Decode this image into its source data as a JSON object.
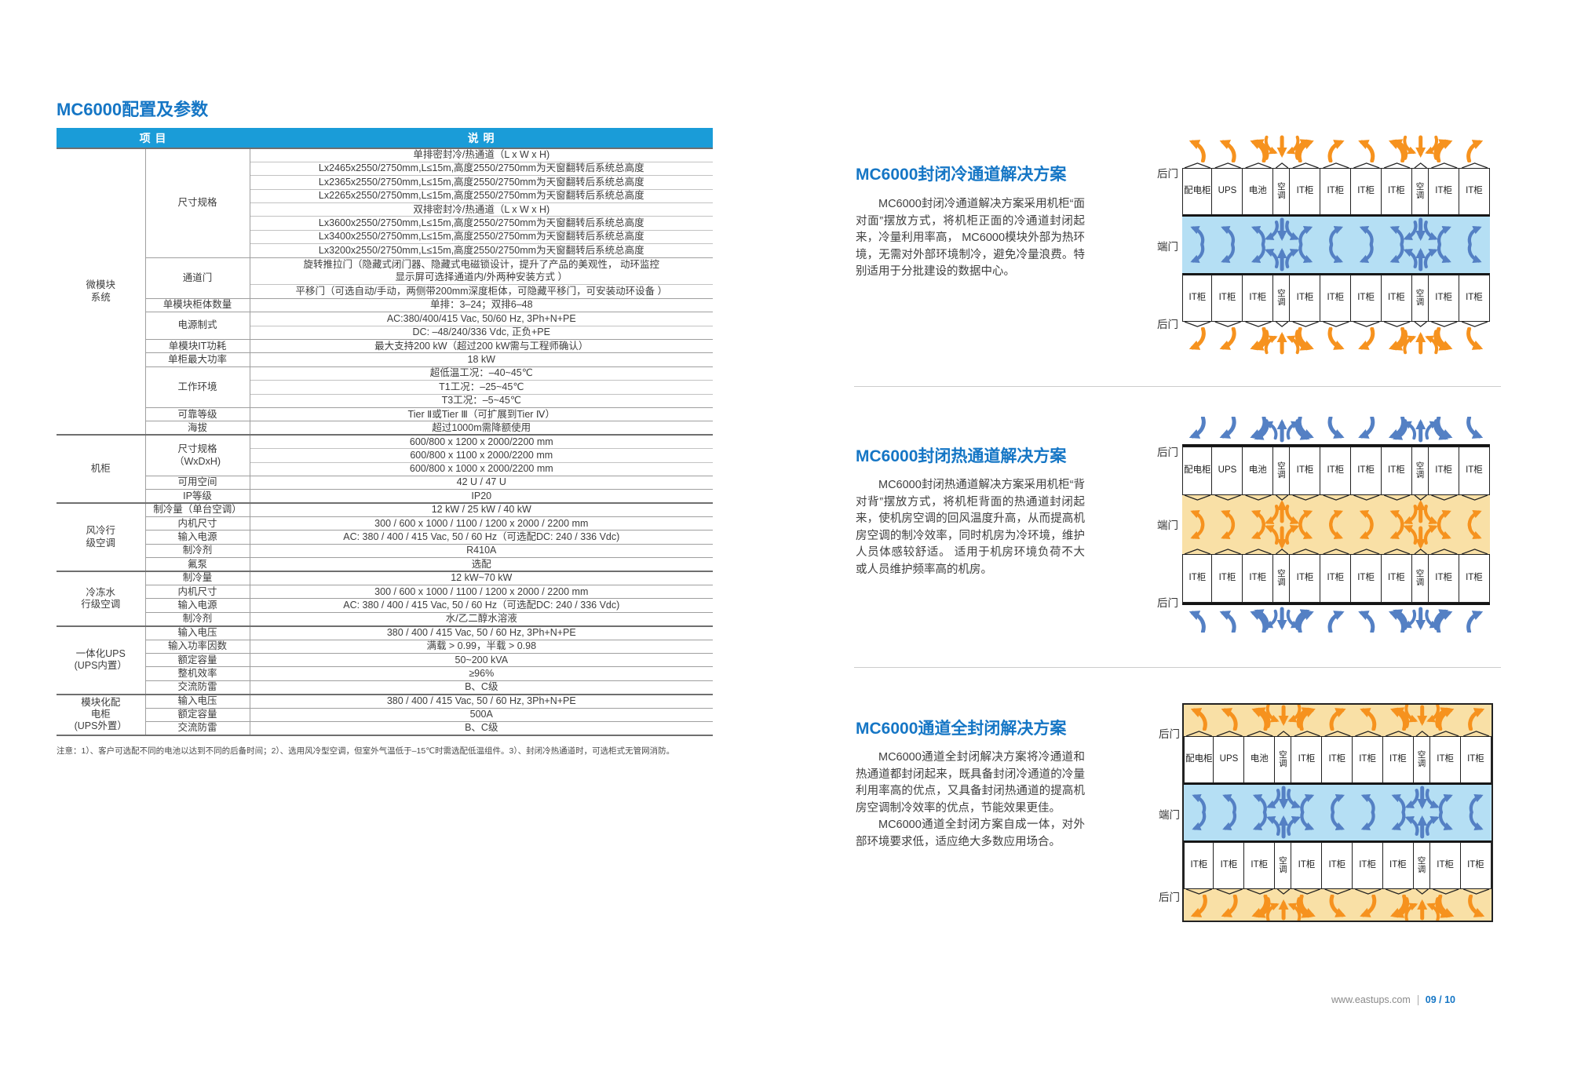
{
  "left": {
    "title": "MC6000配置及参数"
  },
  "table": {
    "headers": [
      "项  目",
      "说  明"
    ],
    "groups": [
      {
        "name": "微模块\n系统",
        "items": [
          {
            "label": "尺寸规格",
            "rows": [
              "单排密封冷/热通道（L x W x H)",
              "Lx2465x2550/2750mm,L≤15m,高度2550/2750mm为天窗翻转后系统总高度",
              "Lx2365x2550/2750mm,L≤15m,高度2550/2750mm为天窗翻转后系统总高度",
              "Lx2265x2550/2750mm,L≤15m,高度2550/2750mm为天窗翻转后系统总高度",
              "双排密封冷/热通道（L x W x H)",
              "Lx3600x2550/2750mm,L≤15m,高度2550/2750mm为天窗翻转后系统总高度",
              "Lx3400x2550/2750mm,L≤15m,高度2550/2750mm为天窗翻转后系统总高度",
              "Lx3200x2550/2750mm,L≤15m,高度2550/2750mm为天窗翻转后系统总高度"
            ]
          },
          {
            "label": "通道门",
            "rows": [
              "旋转推拉门（隐藏式闭门器、隐藏式电磁锁设计，提升了产品的美观性， 动环监控\n显示屏可选择通道内/外两种安装方式 ）",
              "平移门（可选自动/手动，两侧带200mm深度柜体，可隐藏平移门，可安装动环设备 ）"
            ]
          },
          {
            "label": "单模块柜体数量",
            "rows": [
              "单排：3–24；双排6–48"
            ]
          },
          {
            "label": "电源制式",
            "rows": [
              "AC:380/400/415 Vac, 50/60 Hz, 3Ph+N+PE",
              "DC: –48/240/336 Vdc, 正负+PE"
            ]
          },
          {
            "label": "单模块IT功耗",
            "rows": [
              "最大支持200 kW（超过200 kW需与工程师确认）"
            ]
          },
          {
            "label": "单柜最大功率",
            "rows": [
              "18 kW"
            ]
          },
          {
            "label": "工作环境",
            "rows": [
              "超低温工况：–40~45℃",
              "T1工况：–25~45℃",
              "T3工况：–5~45℃"
            ]
          },
          {
            "label": "可靠等级",
            "rows": [
              "Tier Ⅱ或Tier Ⅲ（可扩展到Tier Ⅳ）"
            ]
          },
          {
            "label": "海拔",
            "rows": [
              "超过1000m需降额使用"
            ]
          }
        ]
      },
      {
        "name": "机柜",
        "items": [
          {
            "label": "尺寸规格\n（WxDxH)",
            "rows": [
              "600/800 x 1200 x 2000/2200 mm",
              "600/800 x 1100 x 2000/2200 mm",
              "600/800 x 1000 x 2000/2200 mm"
            ]
          },
          {
            "label": "可用空间",
            "rows": [
              "42 U / 47 U"
            ]
          },
          {
            "label": "IP等级",
            "rows": [
              "IP20"
            ]
          }
        ]
      },
      {
        "name": "风冷行\n级空调",
        "items": [
          {
            "label": "制冷量（单台空调）",
            "rows": [
              "12 kW / 25 kW / 40 kW"
            ]
          },
          {
            "label": "内机尺寸",
            "rows": [
              "300 / 600 x 1000 / 1100 / 1200 x 2000 / 2200 mm"
            ]
          },
          {
            "label": "输入电源",
            "rows": [
              "AC: 380 / 400 / 415 Vac, 50 / 60 Hz（可选配DC: 240 / 336 Vdc)"
            ]
          },
          {
            "label": "制冷剂",
            "rows": [
              "R410A"
            ]
          },
          {
            "label": "氟泵",
            "rows": [
              "选配"
            ]
          }
        ]
      },
      {
        "name": "冷冻水\n行级空调",
        "items": [
          {
            "label": "制冷量",
            "rows": [
              "12 kW~70 kW"
            ]
          },
          {
            "label": "内机尺寸",
            "rows": [
              "300 / 600 x 1000 / 1100 / 1200 x 2000 / 2200 mm"
            ]
          },
          {
            "label": "输入电源",
            "rows": [
              "AC: 380 / 400 / 415 Vac, 50 / 60 Hz（可选配DC: 240 / 336 Vdc)"
            ]
          },
          {
            "label": "制冷剂",
            "rows": [
              "水/乙二醇水溶液"
            ]
          }
        ]
      },
      {
        "name": "一体化UPS\n(UPS内置）",
        "items": [
          {
            "label": "输入电压",
            "rows": [
              "380 / 400 / 415 Vac, 50 / 60 Hz, 3Ph+N+PE"
            ]
          },
          {
            "label": "输入功率因数",
            "rows": [
              "满载 > 0.99，半载 > 0.98"
            ]
          },
          {
            "label": "额定容量",
            "rows": [
              "50~200 kVA"
            ]
          },
          {
            "label": "整机效率",
            "rows": [
              "≥96%"
            ]
          },
          {
            "label": "交流防雷",
            "rows": [
              "B、C级"
            ]
          }
        ]
      },
      {
        "name": "模块化配\n电柜\n(UPS外置）",
        "items": [
          {
            "label": "输入电压",
            "rows": [
              "380 / 400 / 415 Vac, 50 / 60 Hz, 3Ph+N+PE"
            ]
          },
          {
            "label": "额定容量",
            "rows": [
              "500A"
            ]
          },
          {
            "label": "交流防雷",
            "rows": [
              "B、C级"
            ]
          }
        ]
      }
    ],
    "note": "注意：1）、客户可选配不同的电池以达到不同的后备时间；2）、选用风冷型空调，但室外气温低于–15℃时需选配低温组件。3）、封闭冷热通道时，可选柜式无管网消防。"
  },
  "sections": [
    {
      "title": "MC6000封闭冷通道解决方案",
      "paragraphs": [
        "MC6000封闭冷通道解决方案采用机柜“面对面”摆放方式，将机柜正面的冷通道封闭起来，冷量利用率高， MC6000模块外部为热环境，无需对外部环境制冷，避免冷量浪费。特别适用于分批建设的数据中心。"
      ],
      "diagram": "cold"
    },
    {
      "title": "MC6000封闭热通道解决方案",
      "paragraphs": [
        "MC6000封闭热通道解决方案采用机柜“背对背”摆放方式，将机柜背面的热通道封闭起来，使机房空调的回风温度升高，从而提高机房空调的制冷效率，同时机房为冷环境，维护人员体感较舒适。 适用于机房环境负荷不大或人员维护频率高的机房。"
      ],
      "diagram": "hot"
    },
    {
      "title": "MC6000通道全封闭解决方案",
      "paragraphs": [
        "MC6000通道全封闭解决方案将冷通道和热通道都封闭起来，既具备封闭冷通道的冷量利用率高的优点，又具备封闭热通道的提高机房空调制冷效率的优点，节能效果更佳。",
        "MC6000通道全封闭方案自成一体，对外部环境要求低，适应绝大多数应用场合。"
      ],
      "diagram": "full"
    }
  ],
  "diagrams": {
    "cabinets_top": [
      "配电柜",
      "UPS",
      "电池",
      "空调",
      "IT柜",
      "IT柜",
      "IT柜",
      "IT柜",
      "空调",
      "IT柜",
      "IT柜"
    ],
    "cabinets_bottom": [
      "IT柜",
      "IT柜",
      "IT柜",
      "空调",
      "IT柜",
      "IT柜",
      "IT柜",
      "IT柜",
      "空调",
      "IT柜",
      "IT柜"
    ],
    "ac_label": "空调",
    "door_rear": "后门",
    "door_end": "端门"
  },
  "colors": {
    "accent": "#1576c5",
    "table_header_bg": "#1a9cd8",
    "cold_aisle": "#b5dff4",
    "hot_aisle": "#f9e0a6",
    "arrow_cold": "#5480c4",
    "arrow_hot": "#f6921e"
  },
  "footer": {
    "site": "www.eastups.com",
    "page_no": "09 / 10"
  }
}
